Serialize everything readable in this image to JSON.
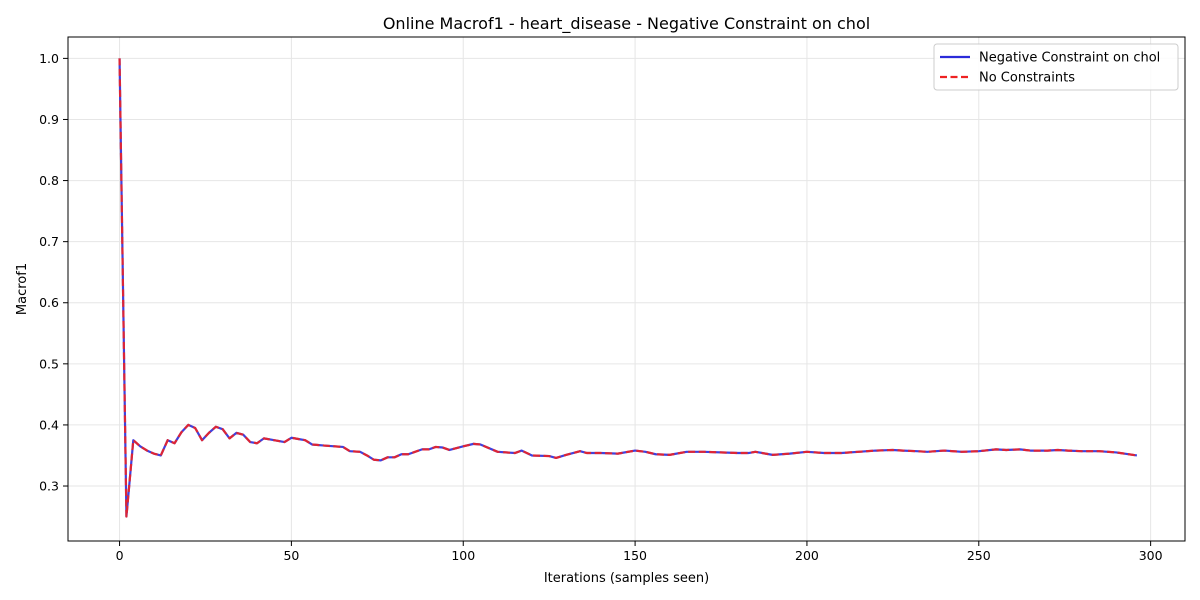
{
  "chart_data": {
    "type": "line",
    "title": "Online Macrof1 - heart_disease - Negative Constraint on chol",
    "xlabel": "Iterations (samples seen)",
    "ylabel": "Macrof1",
    "xlim": [
      -15,
      310
    ],
    "ylim": [
      0.21,
      1.035
    ],
    "xticks": [
      0,
      50,
      100,
      150,
      200,
      250,
      300
    ],
    "yticks": [
      0.3,
      0.4,
      0.5,
      0.6,
      0.7,
      0.8,
      0.9,
      1.0
    ],
    "grid": true,
    "legend_position": "top-right",
    "series": [
      {
        "name": "Negative Constraint on chol",
        "color": "#2b2bd9",
        "style": "solid",
        "points": [
          [
            0,
            1.0
          ],
          [
            2,
            0.25
          ],
          [
            4,
            0.375
          ],
          [
            6,
            0.365
          ],
          [
            8,
            0.358
          ],
          [
            10,
            0.353
          ],
          [
            12,
            0.35
          ],
          [
            14,
            0.375
          ],
          [
            16,
            0.37
          ],
          [
            18,
            0.388
          ],
          [
            20,
            0.4
          ],
          [
            22,
            0.395
          ],
          [
            24,
            0.375
          ],
          [
            26,
            0.387
          ],
          [
            28,
            0.397
          ],
          [
            30,
            0.393
          ],
          [
            32,
            0.378
          ],
          [
            34,
            0.387
          ],
          [
            36,
            0.384
          ],
          [
            38,
            0.372
          ],
          [
            40,
            0.37
          ],
          [
            42,
            0.378
          ],
          [
            44,
            0.376
          ],
          [
            46,
            0.374
          ],
          [
            48,
            0.372
          ],
          [
            50,
            0.379
          ],
          [
            52,
            0.377
          ],
          [
            54,
            0.375
          ],
          [
            56,
            0.368
          ],
          [
            60,
            0.366
          ],
          [
            65,
            0.364
          ],
          [
            67,
            0.357
          ],
          [
            70,
            0.356
          ],
          [
            72,
            0.35
          ],
          [
            74,
            0.343
          ],
          [
            76,
            0.342
          ],
          [
            78,
            0.347
          ],
          [
            80,
            0.347
          ],
          [
            82,
            0.352
          ],
          [
            84,
            0.352
          ],
          [
            88,
            0.36
          ],
          [
            90,
            0.36
          ],
          [
            92,
            0.364
          ],
          [
            94,
            0.363
          ],
          [
            96,
            0.359
          ],
          [
            100,
            0.365
          ],
          [
            103,
            0.369
          ],
          [
            105,
            0.368
          ],
          [
            110,
            0.356
          ],
          [
            115,
            0.354
          ],
          [
            117,
            0.358
          ],
          [
            120,
            0.35
          ],
          [
            125,
            0.349
          ],
          [
            127,
            0.346
          ],
          [
            130,
            0.351
          ],
          [
            134,
            0.357
          ],
          [
            136,
            0.354
          ],
          [
            140,
            0.354
          ],
          [
            145,
            0.353
          ],
          [
            150,
            0.358
          ],
          [
            153,
            0.356
          ],
          [
            156,
            0.352
          ],
          [
            160,
            0.351
          ],
          [
            165,
            0.356
          ],
          [
            170,
            0.356
          ],
          [
            180,
            0.354
          ],
          [
            183,
            0.354
          ],
          [
            185,
            0.356
          ],
          [
            190,
            0.351
          ],
          [
            195,
            0.353
          ],
          [
            200,
            0.356
          ],
          [
            205,
            0.354
          ],
          [
            210,
            0.354
          ],
          [
            215,
            0.356
          ],
          [
            220,
            0.358
          ],
          [
            225,
            0.359
          ],
          [
            228,
            0.358
          ],
          [
            232,
            0.357
          ],
          [
            235,
            0.356
          ],
          [
            240,
            0.358
          ],
          [
            245,
            0.356
          ],
          [
            250,
            0.357
          ],
          [
            255,
            0.36
          ],
          [
            258,
            0.359
          ],
          [
            262,
            0.36
          ],
          [
            265,
            0.358
          ],
          [
            270,
            0.358
          ],
          [
            273,
            0.359
          ],
          [
            276,
            0.358
          ],
          [
            280,
            0.357
          ],
          [
            285,
            0.357
          ],
          [
            290,
            0.355
          ],
          [
            296,
            0.35
          ]
        ]
      },
      {
        "name": "No Constraints",
        "color": "#ee2222",
        "style": "dashed",
        "points": [
          [
            0,
            1.0
          ],
          [
            2,
            0.25
          ],
          [
            4,
            0.375
          ],
          [
            6,
            0.365
          ],
          [
            8,
            0.358
          ],
          [
            10,
            0.353
          ],
          [
            12,
            0.35
          ],
          [
            14,
            0.375
          ],
          [
            16,
            0.37
          ],
          [
            18,
            0.388
          ],
          [
            20,
            0.4
          ],
          [
            22,
            0.395
          ],
          [
            24,
            0.375
          ],
          [
            26,
            0.387
          ],
          [
            28,
            0.397
          ],
          [
            30,
            0.393
          ],
          [
            32,
            0.378
          ],
          [
            34,
            0.387
          ],
          [
            36,
            0.384
          ],
          [
            38,
            0.372
          ],
          [
            40,
            0.37
          ],
          [
            42,
            0.378
          ],
          [
            44,
            0.376
          ],
          [
            46,
            0.374
          ],
          [
            48,
            0.372
          ],
          [
            50,
            0.379
          ],
          [
            52,
            0.377
          ],
          [
            54,
            0.375
          ],
          [
            56,
            0.368
          ],
          [
            60,
            0.366
          ],
          [
            65,
            0.364
          ],
          [
            67,
            0.357
          ],
          [
            70,
            0.356
          ],
          [
            72,
            0.35
          ],
          [
            74,
            0.343
          ],
          [
            76,
            0.342
          ],
          [
            78,
            0.347
          ],
          [
            80,
            0.347
          ],
          [
            82,
            0.352
          ],
          [
            84,
            0.352
          ],
          [
            88,
            0.36
          ],
          [
            90,
            0.36
          ],
          [
            92,
            0.364
          ],
          [
            94,
            0.363
          ],
          [
            96,
            0.359
          ],
          [
            100,
            0.365
          ],
          [
            103,
            0.369
          ],
          [
            105,
            0.368
          ],
          [
            110,
            0.356
          ],
          [
            115,
            0.354
          ],
          [
            117,
            0.358
          ],
          [
            120,
            0.35
          ],
          [
            125,
            0.349
          ],
          [
            127,
            0.346
          ],
          [
            130,
            0.351
          ],
          [
            134,
            0.357
          ],
          [
            136,
            0.354
          ],
          [
            140,
            0.354
          ],
          [
            145,
            0.353
          ],
          [
            150,
            0.358
          ],
          [
            153,
            0.356
          ],
          [
            156,
            0.352
          ],
          [
            160,
            0.351
          ],
          [
            165,
            0.356
          ],
          [
            170,
            0.356
          ],
          [
            180,
            0.354
          ],
          [
            183,
            0.354
          ],
          [
            185,
            0.356
          ],
          [
            190,
            0.351
          ],
          [
            195,
            0.353
          ],
          [
            200,
            0.356
          ],
          [
            205,
            0.354
          ],
          [
            210,
            0.354
          ],
          [
            215,
            0.356
          ],
          [
            220,
            0.358
          ],
          [
            225,
            0.359
          ],
          [
            228,
            0.358
          ],
          [
            232,
            0.357
          ],
          [
            235,
            0.356
          ],
          [
            240,
            0.358
          ],
          [
            245,
            0.356
          ],
          [
            250,
            0.357
          ],
          [
            255,
            0.36
          ],
          [
            258,
            0.359
          ],
          [
            262,
            0.36
          ],
          [
            265,
            0.358
          ],
          [
            270,
            0.358
          ],
          [
            273,
            0.359
          ],
          [
            276,
            0.358
          ],
          [
            280,
            0.357
          ],
          [
            285,
            0.357
          ],
          [
            290,
            0.355
          ],
          [
            296,
            0.35
          ]
        ]
      }
    ]
  }
}
